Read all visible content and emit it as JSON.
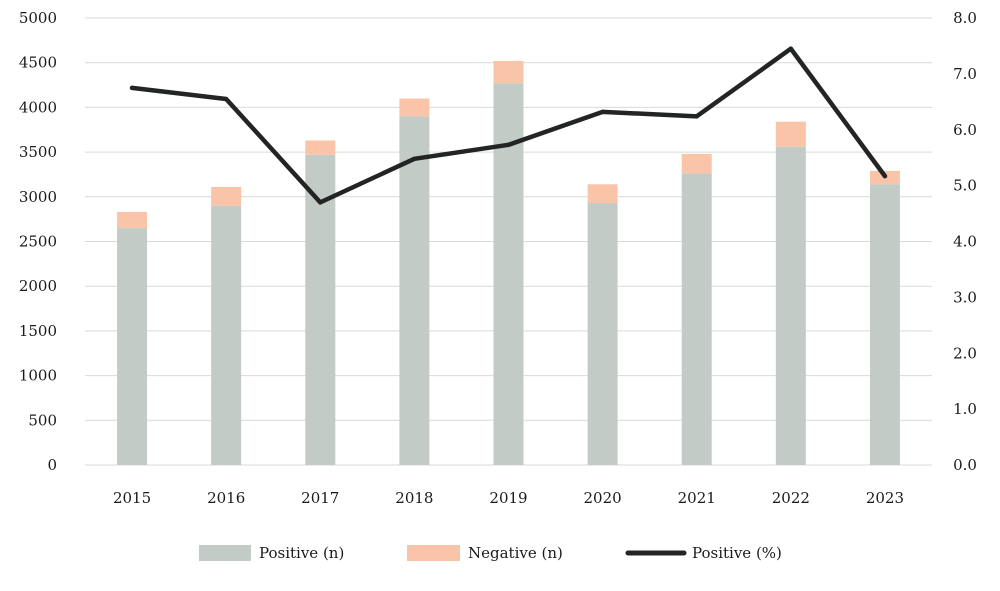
{
  "chart_data": {
    "type": "bar",
    "stacked": true,
    "categories": [
      "2015",
      "2016",
      "2017",
      "2018",
      "2019",
      "2020",
      "2021",
      "2022",
      "2023"
    ],
    "series": [
      {
        "name": "Positive (n)",
        "kind": "bar",
        "axis": "left",
        "color": "#c3cbc7",
        "values": [
          2650,
          2900,
          3470,
          3900,
          4270,
          2930,
          3260,
          3560,
          3140
        ]
      },
      {
        "name": "Negative (n)",
        "kind": "bar",
        "axis": "left",
        "color": "#f9c4a8",
        "values": [
          180,
          210,
          160,
          200,
          250,
          210,
          220,
          280,
          150
        ]
      },
      {
        "name": "Positive (%)",
        "kind": "line",
        "axis": "right",
        "color": "#222524",
        "values": [
          6.75,
          6.55,
          4.7,
          5.48,
          5.73,
          6.32,
          6.24,
          7.45,
          5.17
        ]
      }
    ],
    "y_left": {
      "min": 0,
      "max": 5000,
      "ticks": [
        0,
        500,
        1000,
        1500,
        2000,
        2500,
        3000,
        3500,
        4000,
        4500,
        5000
      ]
    },
    "y_right": {
      "min": 0,
      "max": 8,
      "ticks": [
        "0.0",
        "1.0",
        "2.0",
        "3.0",
        "4.0",
        "5.0",
        "6.0",
        "7.0",
        "8.0"
      ]
    },
    "grid": true,
    "legend_position": "bottom"
  }
}
